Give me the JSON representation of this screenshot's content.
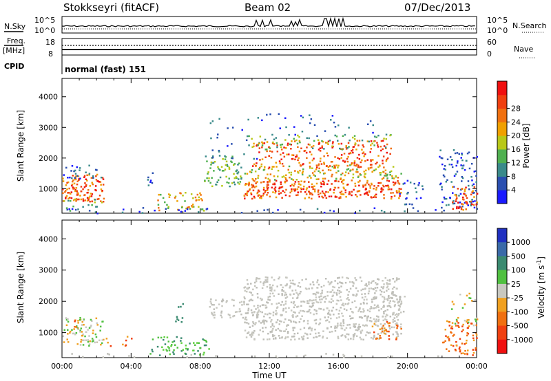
{
  "header": {
    "station": "Stokkseyri (fitACF)",
    "beam": "Beam 02",
    "date": "07/Dec/2013"
  },
  "top_panels": {
    "nsky_label": "N.Sky",
    "nsky_ticks": [
      "10^5",
      "10^0"
    ],
    "nsearch_label": "N.Search",
    "nsearch_ticks": [
      "10^5",
      "10^0"
    ],
    "freq_label_line1": "Freq.",
    "freq_label_line2": "[MHz]",
    "freq_ticks": [
      "18",
      "8"
    ],
    "nave_label": "Nave",
    "nave_ticks": [
      "60",
      "0"
    ],
    "cpid_label": "CPID",
    "cpid_value": "normal (fast) 151"
  },
  "chart_data": [
    {
      "type": "heatmap",
      "name": "power",
      "xlabel": "",
      "ylabel": "Slant Range [km]",
      "xlim": [
        0,
        24
      ],
      "ylim": [
        200,
        4600
      ],
      "yticks": [
        "1000",
        "2000",
        "3000",
        "4000"
      ],
      "colorbar": {
        "label": "Power [dB]",
        "ticks": [
          "4",
          "8",
          "12",
          "16",
          "20",
          "24",
          "28"
        ],
        "colors": [
          "#1a1aff",
          "#2a4fb0",
          "#3a8a8a",
          "#50b050",
          "#b8c818",
          "#f0a000",
          "#f07010",
          "#f04010",
          "#f01010"
        ]
      }
    },
    {
      "type": "heatmap",
      "name": "velocity",
      "xlabel": "Time UT",
      "ylabel": "Slant Range [km]",
      "xlim": [
        0,
        24
      ],
      "ylim": [
        200,
        4600
      ],
      "xticks": [
        "00:00",
        "04:00",
        "08:00",
        "12:00",
        "16:00",
        "20:00",
        "00:00"
      ],
      "yticks": [
        "1000",
        "2000",
        "3000",
        "4000"
      ],
      "colorbar": {
        "label_main": "Velocity",
        "label_unit": "[m s",
        "label_sup": "-1",
        "label_close": "]",
        "ticks": [
          "1000",
          "500",
          "100",
          "25",
          "-25",
          "-100",
          "-500",
          "-1000"
        ],
        "colors": [
          "#2030c0",
          "#3a6aa8",
          "#3a8a70",
          "#50c040",
          "#c8c8c0",
          "#f0a020",
          "#f07010",
          "#f04010",
          "#f01010"
        ]
      }
    }
  ]
}
